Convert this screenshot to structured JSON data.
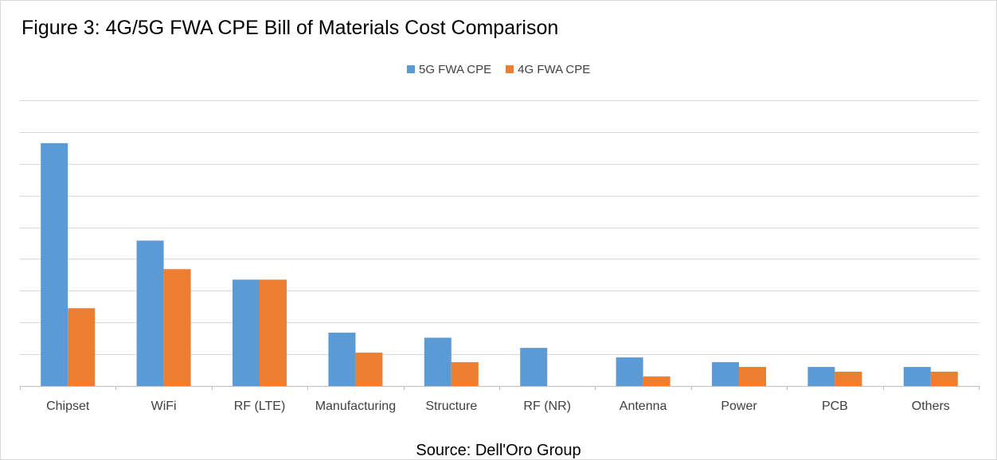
{
  "chart_data": {
    "type": "bar",
    "title": "Figure 3: 4G/5G FWA CPE Bill of Materials Cost Comparison",
    "source": "Source: Dell'Oro Group",
    "categories": [
      "Chipset",
      "WiFi",
      "RF (LTE)",
      "Manufacturing",
      "Structure",
      "RF (NR)",
      "Antenna",
      "Power",
      "PCB",
      "Others"
    ],
    "series": [
      {
        "name": "5G FWA CPE",
        "color": "#5b9bd5",
        "values": [
          7.65,
          4.58,
          3.35,
          1.68,
          1.52,
          1.2,
          0.9,
          0.75,
          0.6,
          0.6
        ]
      },
      {
        "name": "4G FWA CPE",
        "color": "#ed7d31",
        "values": [
          2.45,
          3.68,
          3.35,
          1.05,
          0.75,
          0,
          0.3,
          0.6,
          0.45,
          0.45
        ]
      }
    ],
    "ylim": [
      0,
      9
    ],
    "y_tick_step": 1,
    "y_tick_labels_visible": false,
    "grid": true,
    "xlabel": "",
    "ylabel": "",
    "legend_position": "top-center"
  }
}
